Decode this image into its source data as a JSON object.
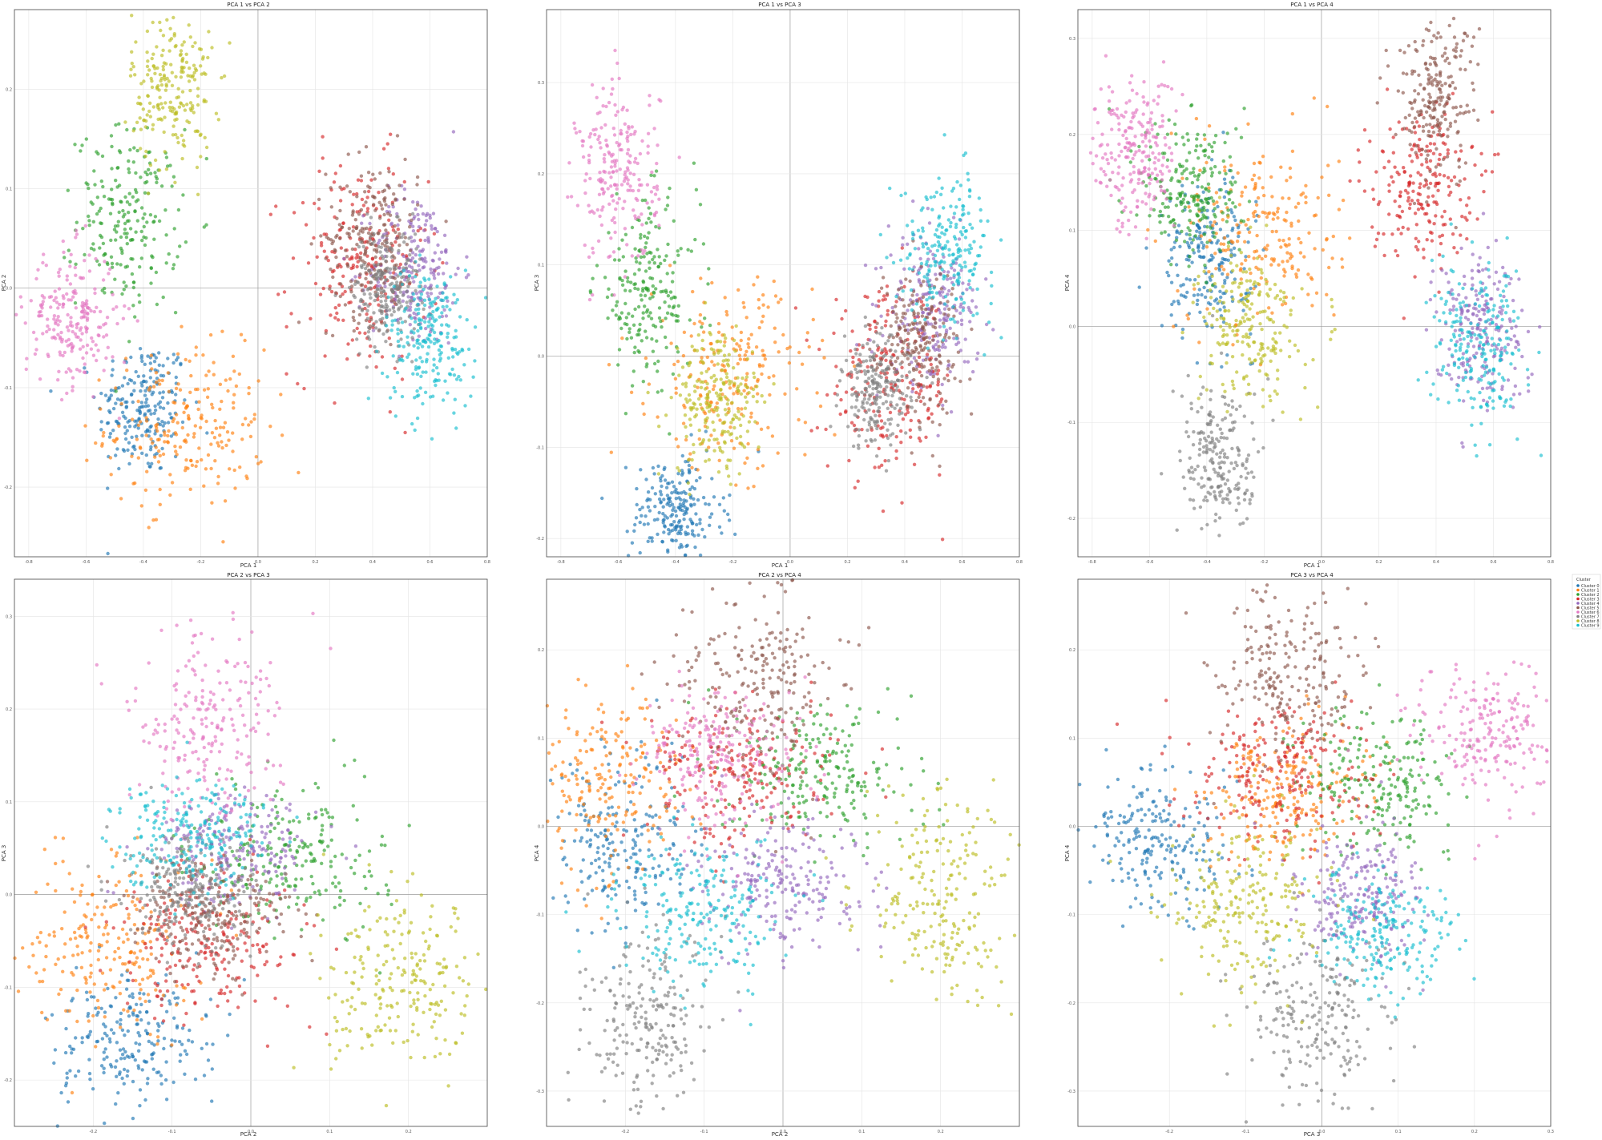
{
  "palette": [
    "#1f77b4",
    "#ff7f0e",
    "#2ca02c",
    "#d62728",
    "#9467bd",
    "#8c564b",
    "#e377c2",
    "#7f7f7f",
    "#bcbd22",
    "#17becf"
  ],
  "legend": {
    "title": "Cluster",
    "items": [
      "Cluster 0",
      "Cluster 1",
      "Cluster 2",
      "Cluster 3",
      "Cluster 4",
      "Cluster 5",
      "Cluster 6",
      "Cluster 7",
      "Cluster 8",
      "Cluster 9"
    ]
  },
  "chart_data": [
    {
      "type": "scatter",
      "title": "PCA 1 vs PCA 2",
      "xlabel": "PCA 1",
      "ylabel": "PCA 2",
      "xlim": [
        -0.85,
        0.8
      ],
      "ylim": [
        -0.27,
        0.28
      ],
      "xticks": [
        -0.8,
        -0.6,
        -0.4,
        -0.2,
        0.0,
        0.2,
        0.4,
        0.6,
        0.8
      ],
      "yticks": [
        -0.2,
        -0.1,
        0.0,
        0.1,
        0.2
      ],
      "grid": true,
      "clusters": [
        {
          "cluster": 0,
          "center": [
            -0.4,
            -0.12
          ],
          "spread": [
            0.08,
            0.035
          ]
        },
        {
          "cluster": 1,
          "center": [
            -0.25,
            -0.14
          ],
          "spread": [
            0.14,
            0.04
          ]
        },
        {
          "cluster": 2,
          "center": [
            -0.45,
            0.07
          ],
          "spread": [
            0.09,
            0.045
          ]
        },
        {
          "cluster": 3,
          "center": [
            0.35,
            0.02
          ],
          "spread": [
            0.12,
            0.055
          ]
        },
        {
          "cluster": 4,
          "center": [
            0.55,
            0.02
          ],
          "spread": [
            0.08,
            0.04
          ]
        },
        {
          "cluster": 5,
          "center": [
            0.4,
            0.05
          ],
          "spread": [
            0.08,
            0.04
          ]
        },
        {
          "cluster": 6,
          "center": [
            -0.65,
            -0.03
          ],
          "spread": [
            0.08,
            0.035
          ]
        },
        {
          "cluster": 7,
          "center": [
            0.45,
            0.0
          ],
          "spread": [
            0.06,
            0.03
          ]
        },
        {
          "cluster": 8,
          "center": [
            -0.3,
            0.2
          ],
          "spread": [
            0.07,
            0.04
          ]
        },
        {
          "cluster": 9,
          "center": [
            0.6,
            -0.05
          ],
          "spread": [
            0.08,
            0.035
          ]
        }
      ]
    },
    {
      "type": "scatter",
      "title": "PCA 1 vs PCA 3",
      "xlabel": "PCA 1",
      "ylabel": "PCA 3",
      "xlim": [
        -0.85,
        0.8
      ],
      "ylim": [
        -0.22,
        0.38
      ],
      "xticks": [
        -0.8,
        -0.6,
        -0.4,
        -0.2,
        0.0,
        0.2,
        0.4,
        0.6,
        0.8
      ],
      "yticks": [
        -0.2,
        -0.1,
        0.0,
        0.1,
        0.2,
        0.3
      ],
      "grid": true,
      "clusters": [
        {
          "cluster": 0,
          "center": [
            -0.4,
            -0.17
          ],
          "spread": [
            0.08,
            0.03
          ]
        },
        {
          "cluster": 1,
          "center": [
            -0.2,
            -0.02
          ],
          "spread": [
            0.14,
            0.05
          ]
        },
        {
          "cluster": 2,
          "center": [
            -0.5,
            0.07
          ],
          "spread": [
            0.09,
            0.05
          ]
        },
        {
          "cluster": 3,
          "center": [
            0.35,
            -0.03
          ],
          "spread": [
            0.11,
            0.05
          ]
        },
        {
          "cluster": 4,
          "center": [
            0.5,
            0.05
          ],
          "spread": [
            0.08,
            0.04
          ]
        },
        {
          "cluster": 5,
          "center": [
            0.45,
            0.02
          ],
          "spread": [
            0.07,
            0.04
          ]
        },
        {
          "cluster": 6,
          "center": [
            -0.6,
            0.2
          ],
          "spread": [
            0.07,
            0.05
          ]
        },
        {
          "cluster": 7,
          "center": [
            0.3,
            -0.04
          ],
          "spread": [
            0.06,
            0.03
          ]
        },
        {
          "cluster": 8,
          "center": [
            -0.25,
            -0.05
          ],
          "spread": [
            0.08,
            0.04
          ]
        },
        {
          "cluster": 9,
          "center": [
            0.55,
            0.12
          ],
          "spread": [
            0.08,
            0.04
          ]
        }
      ]
    },
    {
      "type": "scatter",
      "title": "PCA 1 vs PCA 4",
      "xlabel": "PCA 1",
      "ylabel": "PCA 4",
      "xlim": [
        -0.85,
        0.8
      ],
      "ylim": [
        -0.24,
        0.33
      ],
      "xticks": [
        -0.8,
        -0.6,
        -0.4,
        -0.2,
        0.0,
        0.2,
        0.4,
        0.6,
        0.8
      ],
      "yticks": [
        -0.2,
        -0.1,
        0.0,
        0.1,
        0.2,
        0.3
      ],
      "grid": true,
      "clusters": [
        {
          "cluster": 0,
          "center": [
            -0.4,
            0.07
          ],
          "spread": [
            0.08,
            0.04
          ]
        },
        {
          "cluster": 1,
          "center": [
            -0.2,
            0.1
          ],
          "spread": [
            0.13,
            0.05
          ]
        },
        {
          "cluster": 2,
          "center": [
            -0.45,
            0.14
          ],
          "spread": [
            0.09,
            0.04
          ]
        },
        {
          "cluster": 3,
          "center": [
            0.35,
            0.15
          ],
          "spread": [
            0.09,
            0.04
          ]
        },
        {
          "cluster": 4,
          "center": [
            0.55,
            0.0
          ],
          "spread": [
            0.08,
            0.04
          ]
        },
        {
          "cluster": 5,
          "center": [
            0.4,
            0.24
          ],
          "spread": [
            0.07,
            0.04
          ]
        },
        {
          "cluster": 6,
          "center": [
            -0.65,
            0.18
          ],
          "spread": [
            0.07,
            0.04
          ]
        },
        {
          "cluster": 7,
          "center": [
            -0.35,
            -0.14
          ],
          "spread": [
            0.07,
            0.04
          ]
        },
        {
          "cluster": 8,
          "center": [
            -0.25,
            0.0
          ],
          "spread": [
            0.09,
            0.04
          ]
        },
        {
          "cluster": 9,
          "center": [
            0.55,
            -0.02
          ],
          "spread": [
            0.08,
            0.04
          ]
        }
      ]
    },
    {
      "type": "scatter",
      "title": "PCA 2 vs PCA 3",
      "xlabel": "PCA 2",
      "ylabel": "PCA 3",
      "xlim": [
        -0.3,
        0.3
      ],
      "ylim": [
        -0.25,
        0.34
      ],
      "xticks": [
        -0.2,
        -0.1,
        0.0,
        0.1,
        0.2
      ],
      "yticks": [
        -0.2,
        -0.1,
        0.0,
        0.1,
        0.2,
        0.3
      ],
      "grid": true,
      "clusters": [
        {
          "cluster": 0,
          "center": [
            -0.15,
            -0.16
          ],
          "spread": [
            0.05,
            0.035
          ]
        },
        {
          "cluster": 1,
          "center": [
            -0.18,
            -0.05
          ],
          "spread": [
            0.05,
            0.05
          ]
        },
        {
          "cluster": 2,
          "center": [
            0.05,
            0.04
          ],
          "spread": [
            0.06,
            0.04
          ]
        },
        {
          "cluster": 3,
          "center": [
            -0.05,
            -0.05
          ],
          "spread": [
            0.06,
            0.04
          ]
        },
        {
          "cluster": 4,
          "center": [
            -0.02,
            0.05
          ],
          "spread": [
            0.05,
            0.03
          ]
        },
        {
          "cluster": 5,
          "center": [
            -0.05,
            -0.02
          ],
          "spread": [
            0.05,
            0.03
          ]
        },
        {
          "cluster": 6,
          "center": [
            -0.06,
            0.18
          ],
          "spread": [
            0.05,
            0.05
          ]
        },
        {
          "cluster": 7,
          "center": [
            -0.08,
            0.0
          ],
          "spread": [
            0.04,
            0.03
          ]
        },
        {
          "cluster": 8,
          "center": [
            0.2,
            -0.1
          ],
          "spread": [
            0.05,
            0.045
          ]
        },
        {
          "cluster": 9,
          "center": [
            -0.08,
            0.07
          ],
          "spread": [
            0.05,
            0.03
          ]
        }
      ]
    },
    {
      "type": "scatter",
      "title": "PCA 2 vs PCA 4",
      "xlabel": "PCA 2",
      "ylabel": "PCA 4",
      "xlim": [
        -0.3,
        0.3
      ],
      "ylim": [
        -0.34,
        0.28
      ],
      "xticks": [
        -0.2,
        -0.1,
        0.0,
        0.1,
        0.2
      ],
      "yticks": [
        -0.3,
        -0.2,
        -0.1,
        0.0,
        0.1,
        0.2
      ],
      "grid": true,
      "clusters": [
        {
          "cluster": 0,
          "center": [
            -0.2,
            -0.02
          ],
          "spread": [
            0.05,
            0.05
          ]
        },
        {
          "cluster": 1,
          "center": [
            -0.23,
            0.05
          ],
          "spread": [
            0.05,
            0.05
          ]
        },
        {
          "cluster": 2,
          "center": [
            0.05,
            0.06
          ],
          "spread": [
            0.06,
            0.04
          ]
        },
        {
          "cluster": 3,
          "center": [
            -0.05,
            0.06
          ],
          "spread": [
            0.06,
            0.04
          ]
        },
        {
          "cluster": 4,
          "center": [
            0.0,
            -0.06
          ],
          "spread": [
            0.05,
            0.04
          ]
        },
        {
          "cluster": 5,
          "center": [
            -0.03,
            0.17
          ],
          "spread": [
            0.05,
            0.05
          ]
        },
        {
          "cluster": 6,
          "center": [
            -0.08,
            0.08
          ],
          "spread": [
            0.05,
            0.04
          ]
        },
        {
          "cluster": 7,
          "center": [
            -0.17,
            -0.22
          ],
          "spread": [
            0.04,
            0.05
          ]
        },
        {
          "cluster": 8,
          "center": [
            0.2,
            -0.08
          ],
          "spread": [
            0.05,
            0.06
          ]
        },
        {
          "cluster": 9,
          "center": [
            -0.1,
            -0.1
          ],
          "spread": [
            0.05,
            0.04
          ]
        }
      ]
    },
    {
      "type": "scatter",
      "title": "PCA 3 vs PCA 4",
      "xlabel": "PCA 3",
      "ylabel": "PCA 4",
      "xlim": [
        -0.32,
        0.3
      ],
      "ylim": [
        -0.34,
        0.28
      ],
      "xticks": [
        -0.2,
        -0.1,
        0.0,
        0.1,
        0.2,
        0.3
      ],
      "yticks": [
        -0.3,
        -0.2,
        -0.1,
        0.0,
        0.1,
        0.2
      ],
      "grid": true,
      "clusters": [
        {
          "cluster": 0,
          "center": [
            -0.22,
            -0.02
          ],
          "spread": [
            0.05,
            0.04
          ]
        },
        {
          "cluster": 1,
          "center": [
            -0.05,
            0.04
          ],
          "spread": [
            0.05,
            0.04
          ]
        },
        {
          "cluster": 2,
          "center": [
            0.08,
            0.05
          ],
          "spread": [
            0.05,
            0.04
          ]
        },
        {
          "cluster": 3,
          "center": [
            -0.05,
            0.06
          ],
          "spread": [
            0.06,
            0.04
          ]
        },
        {
          "cluster": 4,
          "center": [
            0.05,
            -0.08
          ],
          "spread": [
            0.04,
            0.04
          ]
        },
        {
          "cluster": 5,
          "center": [
            -0.05,
            0.17
          ],
          "spread": [
            0.05,
            0.05
          ]
        },
        {
          "cluster": 6,
          "center": [
            0.22,
            0.1
          ],
          "spread": [
            0.05,
            0.04
          ]
        },
        {
          "cluster": 7,
          "center": [
            0.0,
            -0.22
          ],
          "spread": [
            0.05,
            0.05
          ]
        },
        {
          "cluster": 8,
          "center": [
            -0.1,
            -0.09
          ],
          "spread": [
            0.05,
            0.05
          ]
        },
        {
          "cluster": 9,
          "center": [
            0.08,
            -0.12
          ],
          "spread": [
            0.05,
            0.035
          ]
        }
      ]
    }
  ]
}
